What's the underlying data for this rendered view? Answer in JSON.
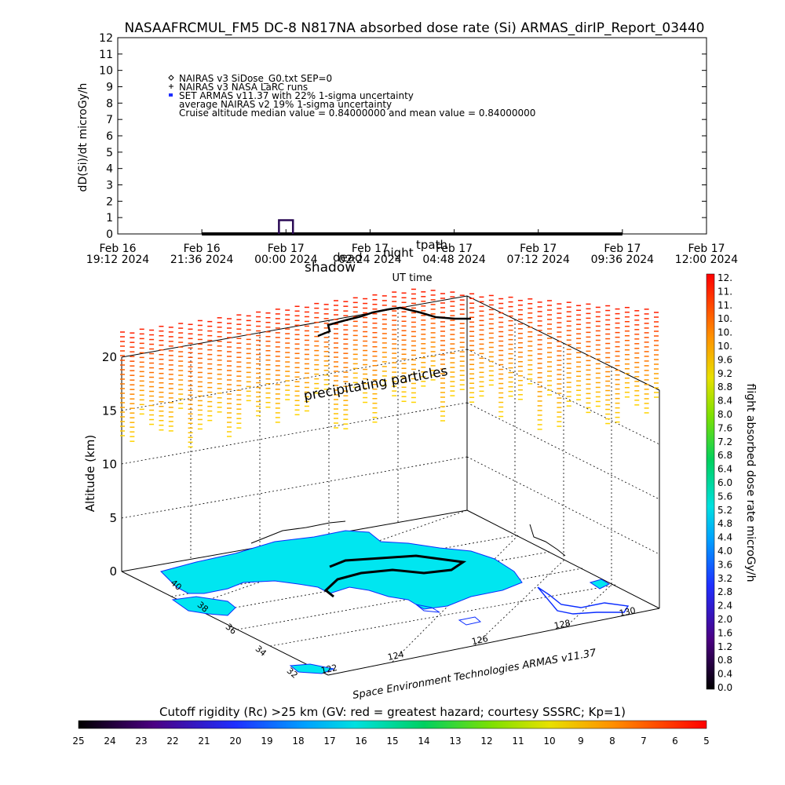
{
  "title": "NASAAFRCMUL_FM5 DC-8   N817NA absorbed dose rate (Si) ARMAS_dirIP_Report_03440",
  "chart_data": [
    {
      "type": "line",
      "ylabel": "dD(Si)/dt microGy/h",
      "xlabel": "UT time",
      "ylim": [
        0,
        12
      ],
      "yticks": [
        "0",
        "1",
        "2",
        "3",
        "4",
        "5",
        "6",
        "7",
        "8",
        "9",
        "10",
        "11",
        "12"
      ],
      "xticks": [
        {
          "date": "Feb 16",
          "time": "19:12 2024"
        },
        {
          "date": "Feb 16",
          "time": "21:36 2024"
        },
        {
          "date": "Feb 17",
          "time": "00:00 2024"
        },
        {
          "date": "Feb 17",
          "time": "02:24 2024"
        },
        {
          "date": "Feb 17",
          "time": "04:48 2024"
        },
        {
          "date": "Feb 17",
          "time": "07:12 2024"
        },
        {
          "date": "Feb 17",
          "time": "09:36 2024"
        },
        {
          "date": "Feb 17",
          "time": "12:00 2024"
        }
      ],
      "legend": [
        {
          "symbol": "diamond",
          "label": "NAIRAS v3 SiDose_G0.txt SEP=0"
        },
        {
          "symbol": "plus",
          "label": "NAIRAS v3 NASA LaRC runs"
        },
        {
          "symbol": "blue-dot",
          "label": "SET ARMAS v11.37 with 22% 1-sigma uncertainty"
        },
        {
          "symbol": "none",
          "label": "average NAIRAS v2 19% 1-sigma uncertainty"
        },
        {
          "symbol": "none",
          "label": "Cruise altitude median value = 0.84000000 and mean value = 0.84000000"
        }
      ],
      "legend_position": "top-left",
      "series": [
        {
          "name": "SET ARMAS",
          "x": [
            "Feb 16 21:36 2024",
            "Feb 17 09:36 2024"
          ],
          "y": [
            0.0,
            0.0
          ]
        }
      ],
      "spike": {
        "x_start": "Feb 16 23:48 2024",
        "x_end": "Feb 17 00:12 2024",
        "y": 0.84
      },
      "overlay_labels": [
        "shadow",
        "dead",
        "night",
        "tpath"
      ]
    },
    {
      "type": "scatter",
      "subtype": "3d-map",
      "ylabel": "Altitude (km)",
      "zticks": [
        "0",
        "5",
        "10",
        "15",
        "20"
      ],
      "lat_ticks": [
        "32",
        "34",
        "36",
        "38",
        "40"
      ],
      "lon_ticks": [
        "122",
        "124",
        "126",
        "128",
        "130"
      ],
      "annotation": "precipitating particles",
      "credit": "Space Environment Technologies ARMAS v11.37"
    },
    {
      "type": "heatmap",
      "subtype": "colorbar-vertical",
      "label": "flight absorbed dose rate microGy/h",
      "ticks": [
        "0.0",
        "0.4",
        "0.8",
        "1.2",
        "1.6",
        "2.0",
        "2.4",
        "2.8",
        "3.2",
        "3.6",
        "4.0",
        "4.4",
        "4.8",
        "5.2",
        "5.6",
        "6.0",
        "6.4",
        "6.8",
        "7.2",
        "7.6",
        "8.0",
        "8.4",
        "8.8",
        "9.2",
        "9.6",
        "10.",
        "10.",
        "10.",
        "11.",
        "11.",
        "12."
      ]
    },
    {
      "type": "heatmap",
      "subtype": "colorbar-horizontal",
      "label": "Cutoff rigidity (Rc) >25 km (GV: red = greatest hazard; courtesy SSSRC; Kp=1)",
      "ticks": [
        "25",
        "24",
        "23",
        "22",
        "21",
        "20",
        "19",
        "18",
        "17",
        "16",
        "15",
        "14",
        "13",
        "12",
        "11",
        "10",
        "9",
        "8",
        "7",
        "6",
        "5"
      ]
    }
  ]
}
